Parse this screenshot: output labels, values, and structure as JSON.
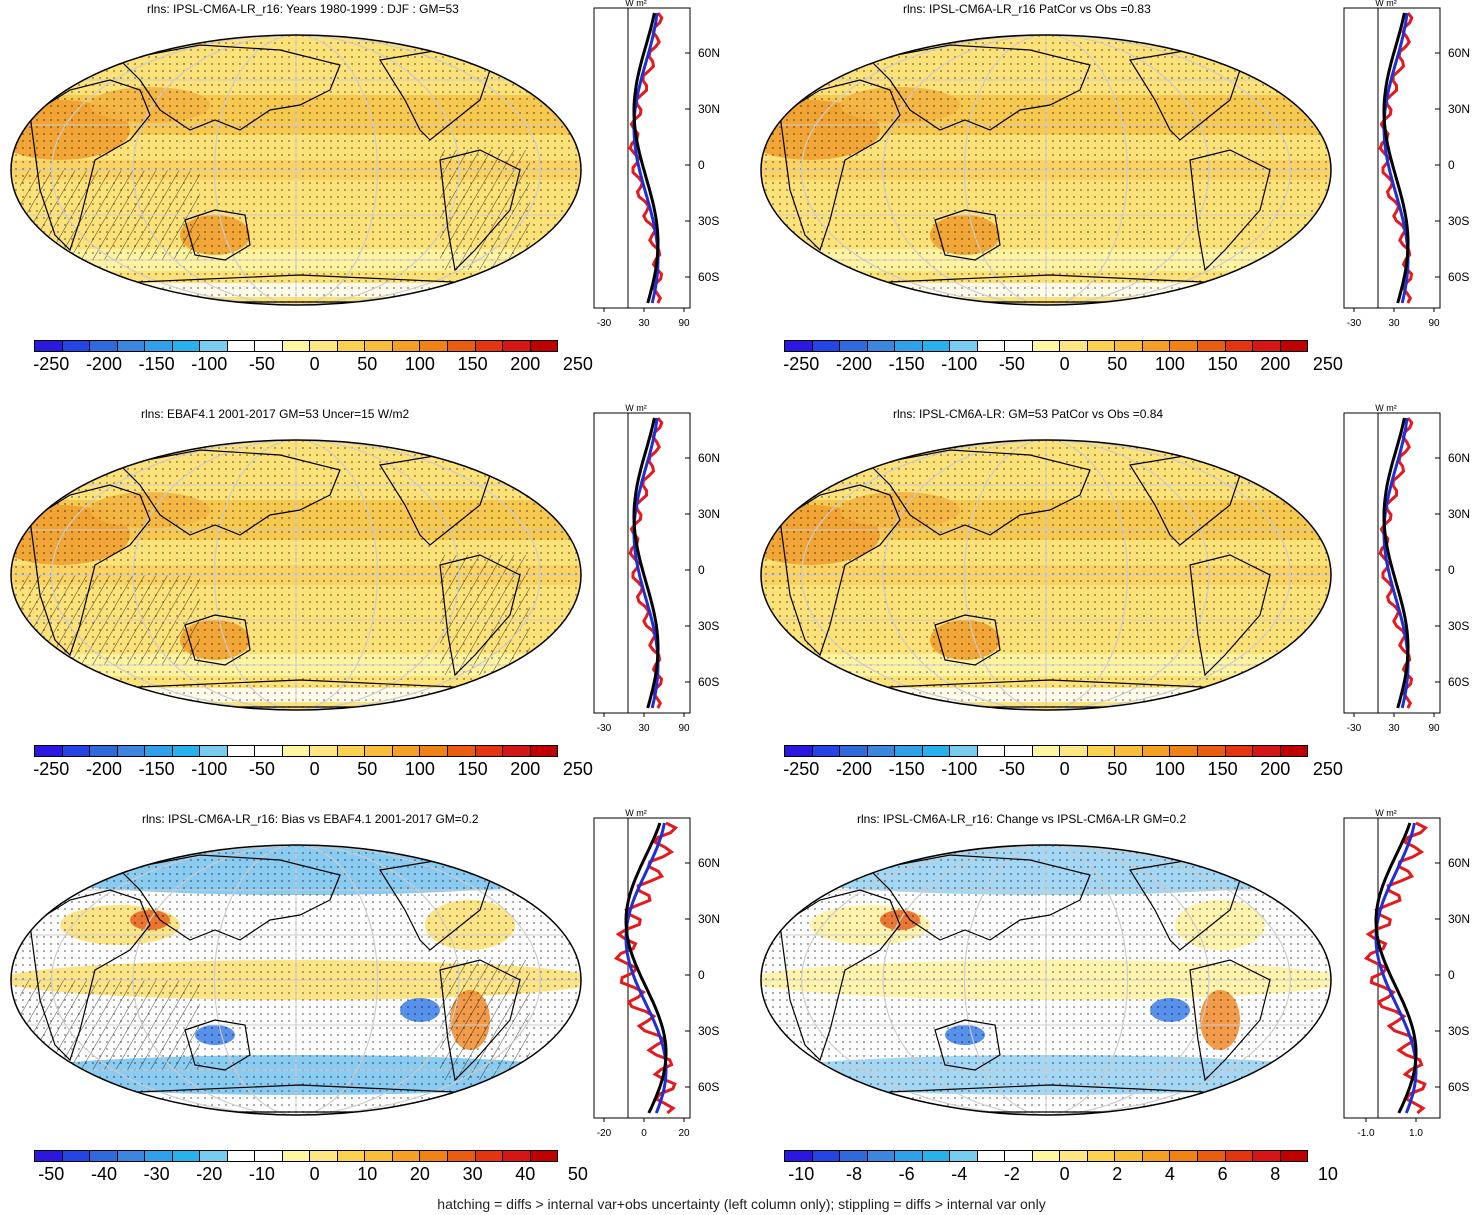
{
  "figure": {
    "footer": "hatching = diffs > internal var+obs uncertainty (left column only); stippling = diffs > internal var only",
    "profile_unit": "W m²",
    "lat_ticks": [
      "60N",
      "30N",
      "0",
      "30S",
      "60S"
    ]
  },
  "panels": [
    {
      "id": "p1",
      "title": "rlns: IPSL-CM6A-LR_r16: Years 1980-1999 : DJF : GM=53",
      "colorbar_labels": [
        "-250",
        "-200",
        "-150",
        "-100",
        "-50",
        "0",
        "50",
        "100",
        "150",
        "200",
        "250"
      ],
      "profile_xticks": [
        "-30",
        "30",
        "90"
      ],
      "hatching": true,
      "stippling": true
    },
    {
      "id": "p2",
      "title": "rlns: IPSL-CM6A-LR_r16 PatCor vs Obs =0.83",
      "colorbar_labels": [
        "-250",
        "-200",
        "-150",
        "-100",
        "-50",
        "0",
        "50",
        "100",
        "150",
        "200",
        "250"
      ],
      "profile_xticks": [
        "-30",
        "30",
        "90"
      ],
      "hatching": false,
      "stippling": true
    },
    {
      "id": "p3",
      "title": "rlns: EBAF4.1 2001-2017 GM=53 Uncer=15 W/m2",
      "colorbar_labels": [
        "-250",
        "-200",
        "-150",
        "-100",
        "-50",
        "0",
        "50",
        "100",
        "150",
        "200",
        "250"
      ],
      "profile_xticks": [
        "-30",
        "30",
        "90"
      ],
      "hatching": true,
      "stippling": true
    },
    {
      "id": "p4",
      "title": "rlns: IPSL-CM6A-LR: GM=53 PatCor vs Obs =0.84",
      "colorbar_labels": [
        "-250",
        "-200",
        "-150",
        "-100",
        "-50",
        "0",
        "50",
        "100",
        "150",
        "200",
        "250"
      ],
      "profile_xticks": [
        "-30",
        "30",
        "90"
      ],
      "hatching": false,
      "stippling": true
    },
    {
      "id": "p5",
      "title": "rlns: IPSL-CM6A-LR_r16: Bias vs EBAF4.1 2001-2017 GM=0.2",
      "colorbar_labels": [
        "-50",
        "-40",
        "-30",
        "-20",
        "-10",
        "0",
        "10",
        "20",
        "30",
        "40",
        "50"
      ],
      "profile_xticks": [
        "-20",
        "0",
        "20"
      ],
      "hatching": true,
      "stippling": true
    },
    {
      "id": "p6",
      "title": "rlns: IPSL-CM6A-LR_r16: Change vs IPSL-CM6A-LR GM=0.2",
      "colorbar_labels": [
        "-10",
        "-8",
        "-6",
        "-4",
        "-2",
        "0",
        "2",
        "4",
        "6",
        "8",
        "10"
      ],
      "profile_xticks": [
        "-1.0",
        "1.0"
      ],
      "hatching": false,
      "stippling": true
    }
  ],
  "colors": {
    "colorbar": [
      "#2a17e0",
      "#2544e6",
      "#3069dc",
      "#3d86e0",
      "#2fa0ea",
      "#27b2ec",
      "#77cdf0",
      "#ffffff",
      "#ffffff",
      "#fff6a0",
      "#ffe680",
      "#fcd150",
      "#f8bd3a",
      "#f5a024",
      "#f08214",
      "#ea5d0e",
      "#e23510",
      "#d61616",
      "#c00000"
    ],
    "profile_model": "#e41a1c",
    "profile_obs": "#1f2fd8",
    "profile_mean": "#000000"
  }
}
